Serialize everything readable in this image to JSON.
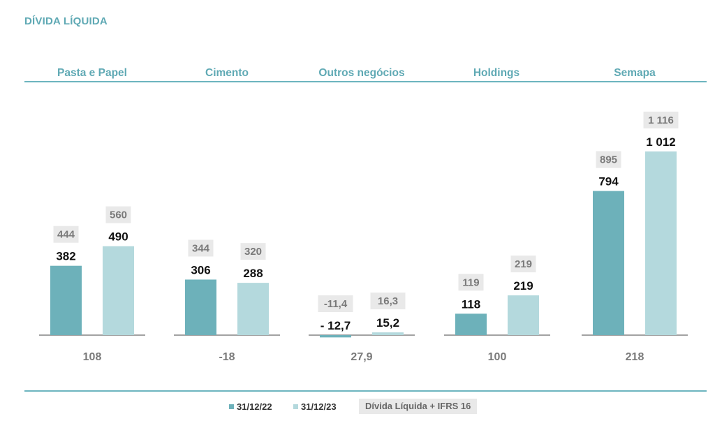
{
  "title": "DÍVIDA LÍQUIDA",
  "colors": {
    "accent": "#5fa9b4",
    "series_2022": "#6db1ba",
    "series_2023": "#b4d9dd",
    "ifrs_box": "#e9e9e9"
  },
  "chart_data": {
    "type": "bar",
    "title": "DÍVIDA LÍQUIDA",
    "categories": [
      "Pasta e Papel",
      "Cimento",
      "Outros negócios",
      "Holdings",
      "Semapa"
    ],
    "series": [
      {
        "name": "31/12/22",
        "values": [
          382,
          306,
          -12.7,
          118,
          794
        ],
        "labels": [
          "382",
          "306",
          "- 12,7",
          "118",
          "794"
        ]
      },
      {
        "name": "31/12/23",
        "values": [
          490,
          288,
          15.2,
          219,
          1012
        ],
        "labels": [
          "490",
          "288",
          "15,2",
          "219",
          "1 012"
        ]
      },
      {
        "name": "Dívida Líquida + IFRS 16",
        "values_2022": [
          444,
          344,
          -11.4,
          119,
          895
        ],
        "values_2023": [
          560,
          320,
          16.3,
          219,
          1116
        ],
        "labels_2022": [
          "444",
          "344",
          "-11,4",
          "119",
          "895"
        ],
        "labels_2023": [
          "560",
          "320",
          "16,3",
          "219",
          "1 116"
        ]
      }
    ],
    "changes": [
      108,
      -18,
      27.9,
      100,
      218
    ],
    "change_labels": [
      "108",
      "-18",
      "27,9",
      "100",
      "218"
    ],
    "legend": {
      "items": [
        "31/12/22",
        "31/12/23"
      ],
      "ifrs_label": "Dívida Líquida + IFRS 16",
      "position": "bottom"
    }
  }
}
